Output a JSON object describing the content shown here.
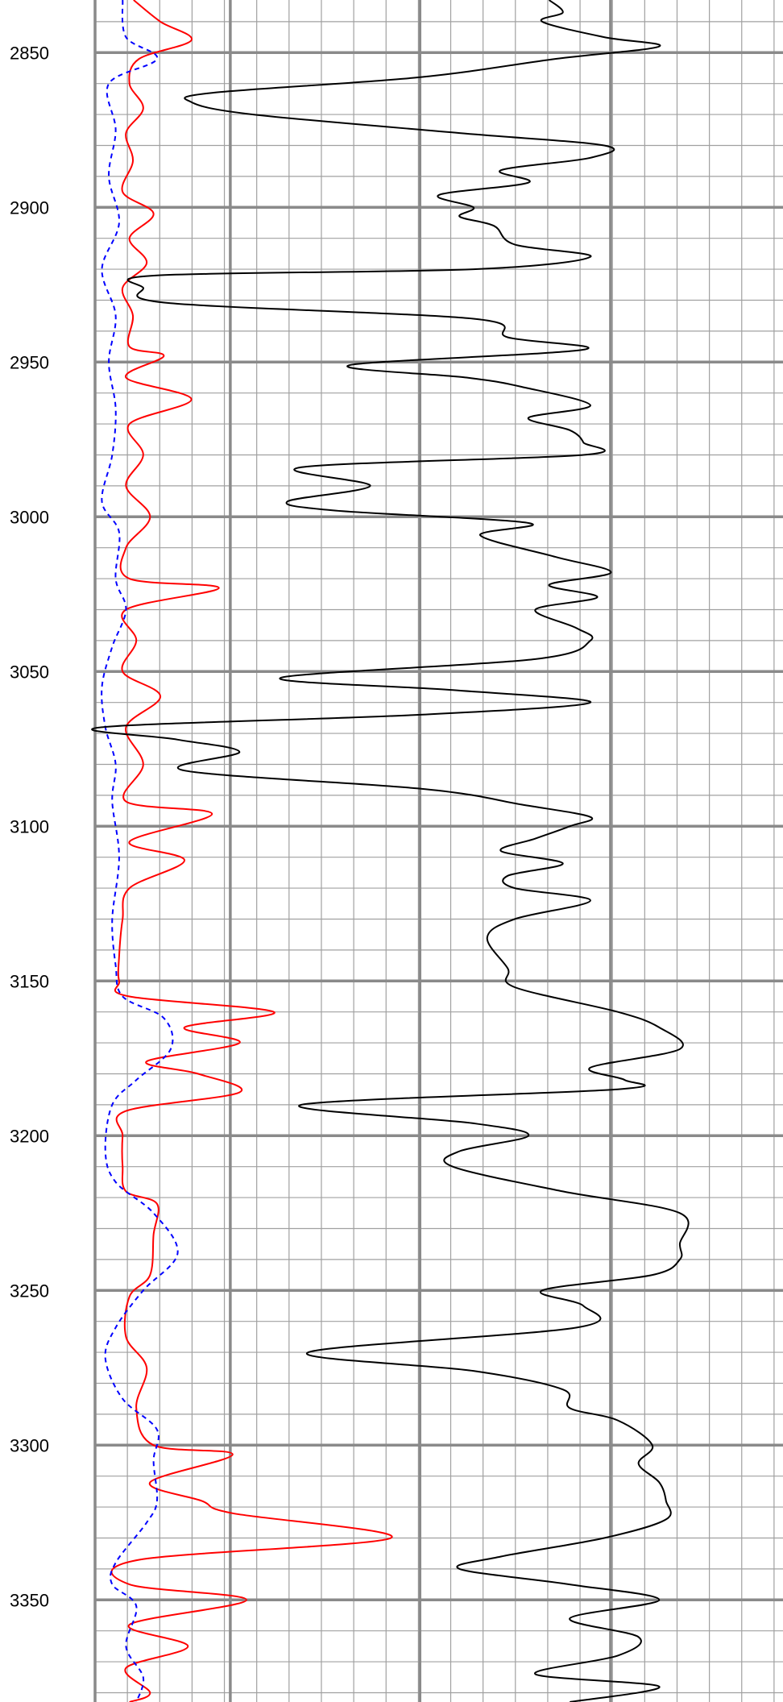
{
  "chart_data": {
    "type": "line",
    "title": "",
    "xlabel": "",
    "ylabel": "",
    "y_axis": {
      "ticks": [
        2850,
        2900,
        2950,
        3000,
        3050,
        3100,
        3150,
        3200,
        3250,
        3300,
        3350
      ],
      "tick_labels": [
        "2850",
        "2900",
        "2950",
        "3000",
        "3050",
        "3100",
        "3150",
        "3200",
        "3250",
        "3300",
        "3350"
      ],
      "range": [
        2833,
        3383
      ],
      "inverted": true,
      "minor_step": 10
    },
    "x_axis": {
      "range": [
        0,
        1
      ],
      "major_lines": [
        0,
        0.1966,
        0.4722,
        0.7493
      ],
      "minor_step": 0.047,
      "labels": "none"
    },
    "grid": true,
    "colors": {
      "grid_major": "#8a8a8a",
      "grid_minor": "#a0a0a0",
      "background": "#ffffff"
    },
    "series": [
      {
        "color": "#ff0000",
        "style": "solid",
        "x_scale": [
          0,
          1
        ],
        "points": [
          [
            2833,
            0.056
          ],
          [
            2840,
            0.095
          ],
          [
            2846,
            0.14
          ],
          [
            2852,
            0.064
          ],
          [
            2860,
            0.05
          ],
          [
            2868,
            0.07
          ],
          [
            2876,
            0.045
          ],
          [
            2885,
            0.055
          ],
          [
            2895,
            0.04
          ],
          [
            2902,
            0.085
          ],
          [
            2910,
            0.05
          ],
          [
            2918,
            0.075
          ],
          [
            2926,
            0.04
          ],
          [
            2935,
            0.055
          ],
          [
            2945,
            0.05
          ],
          [
            2948,
            0.1
          ],
          [
            2955,
            0.045
          ],
          [
            2962,
            0.14
          ],
          [
            2970,
            0.05
          ],
          [
            2980,
            0.07
          ],
          [
            2990,
            0.045
          ],
          [
            3000,
            0.08
          ],
          [
            3010,
            0.045
          ],
          [
            3020,
            0.05
          ],
          [
            3023,
            0.18
          ],
          [
            3030,
            0.045
          ],
          [
            3040,
            0.06
          ],
          [
            3050,
            0.04
          ],
          [
            3058,
            0.095
          ],
          [
            3068,
            0.045
          ],
          [
            3080,
            0.07
          ],
          [
            3092,
            0.045
          ],
          [
            3096,
            0.17
          ],
          [
            3105,
            0.05
          ],
          [
            3111,
            0.13
          ],
          [
            3120,
            0.05
          ],
          [
            3130,
            0.04
          ],
          [
            3142,
            0.035
          ],
          [
            3150,
            0.035
          ],
          [
            3155,
            0.05
          ],
          [
            3160,
            0.26
          ],
          [
            3165,
            0.13
          ],
          [
            3170,
            0.21
          ],
          [
            3176,
            0.075
          ],
          [
            3180,
            0.15
          ],
          [
            3186,
            0.21
          ],
          [
            3192,
            0.045
          ],
          [
            3200,
            0.04
          ],
          [
            3210,
            0.04
          ],
          [
            3218,
            0.045
          ],
          [
            3222,
            0.09
          ],
          [
            3232,
            0.085
          ],
          [
            3245,
            0.08
          ],
          [
            3252,
            0.05
          ],
          [
            3265,
            0.045
          ],
          [
            3275,
            0.075
          ],
          [
            3288,
            0.06
          ],
          [
            3300,
            0.085
          ],
          [
            3303,
            0.2
          ],
          [
            3312,
            0.08
          ],
          [
            3318,
            0.155
          ],
          [
            3322,
            0.2
          ],
          [
            3330,
            0.43
          ],
          [
            3337,
            0.065
          ],
          [
            3345,
            0.05
          ],
          [
            3350,
            0.22
          ],
          [
            3358,
            0.05
          ],
          [
            3365,
            0.135
          ],
          [
            3372,
            0.045
          ],
          [
            3380,
            0.08
          ],
          [
            3383,
            0.05
          ]
        ]
      },
      {
        "color": "#0000ff",
        "style": "dashed",
        "x_scale": [
          0,
          1
        ],
        "points": [
          [
            2833,
            0.04
          ],
          [
            2845,
            0.045
          ],
          [
            2852,
            0.09
          ],
          [
            2860,
            0.02
          ],
          [
            2875,
            0.03
          ],
          [
            2890,
            0.02
          ],
          [
            2905,
            0.035
          ],
          [
            2920,
            0.01
          ],
          [
            2935,
            0.03
          ],
          [
            2950,
            0.02
          ],
          [
            2965,
            0.03
          ],
          [
            2980,
            0.025
          ],
          [
            2995,
            0.01
          ],
          [
            3005,
            0.035
          ],
          [
            3020,
            0.03
          ],
          [
            3030,
            0.045
          ],
          [
            3042,
            0.025
          ],
          [
            3055,
            0.01
          ],
          [
            3068,
            0.015
          ],
          [
            3080,
            0.03
          ],
          [
            3092,
            0.025
          ],
          [
            3110,
            0.035
          ],
          [
            3130,
            0.025
          ],
          [
            3145,
            0.03
          ],
          [
            3155,
            0.04
          ],
          [
            3162,
            0.1
          ],
          [
            3172,
            0.11
          ],
          [
            3182,
            0.06
          ],
          [
            3190,
            0.025
          ],
          [
            3205,
            0.015
          ],
          [
            3215,
            0.03
          ],
          [
            3225,
            0.085
          ],
          [
            3238,
            0.12
          ],
          [
            3250,
            0.07
          ],
          [
            3262,
            0.03
          ],
          [
            3272,
            0.015
          ],
          [
            3285,
            0.04
          ],
          [
            3295,
            0.09
          ],
          [
            3305,
            0.085
          ],
          [
            3318,
            0.09
          ],
          [
            3325,
            0.075
          ],
          [
            3338,
            0.03
          ],
          [
            3345,
            0.025
          ],
          [
            3352,
            0.06
          ],
          [
            3365,
            0.045
          ],
          [
            3375,
            0.07
          ],
          [
            3383,
            0.06
          ]
        ]
      },
      {
        "color": "#000000",
        "style": "solid",
        "x_scale": [
          0,
          1
        ],
        "points": [
          [
            2833,
            0.66
          ],
          [
            2837,
            0.68
          ],
          [
            2840,
            0.65
          ],
          [
            2845,
            0.74
          ],
          [
            2848,
            0.82
          ],
          [
            2852,
            0.67
          ],
          [
            2858,
            0.47
          ],
          [
            2863,
            0.17
          ],
          [
            2866,
            0.14
          ],
          [
            2870,
            0.23
          ],
          [
            2876,
            0.53
          ],
          [
            2880,
            0.74
          ],
          [
            2884,
            0.72
          ],
          [
            2888,
            0.59
          ],
          [
            2892,
            0.63
          ],
          [
            2896,
            0.5
          ],
          [
            2900,
            0.55
          ],
          [
            2903,
            0.53
          ],
          [
            2906,
            0.58
          ],
          [
            2912,
            0.61
          ],
          [
            2916,
            0.72
          ],
          [
            2920,
            0.55
          ],
          [
            2922,
            0.09
          ],
          [
            2926,
            0.07
          ],
          [
            2931,
            0.11
          ],
          [
            2936,
            0.55
          ],
          [
            2942,
            0.6
          ],
          [
            2946,
            0.71
          ],
          [
            2951,
            0.37
          ],
          [
            2955,
            0.54
          ],
          [
            2958,
            0.62
          ],
          [
            2964,
            0.72
          ],
          [
            2968,
            0.63
          ],
          [
            2972,
            0.69
          ],
          [
            2976,
            0.71
          ],
          [
            2980,
            0.71
          ],
          [
            2984,
            0.3
          ],
          [
            2990,
            0.4
          ],
          [
            2995,
            0.28
          ],
          [
            2998,
            0.35
          ],
          [
            3002,
            0.63
          ],
          [
            3006,
            0.56
          ],
          [
            3013,
            0.67
          ],
          [
            3018,
            0.75
          ],
          [
            3022,
            0.66
          ],
          [
            3026,
            0.73
          ],
          [
            3030,
            0.64
          ],
          [
            3036,
            0.7
          ],
          [
            3040,
            0.72
          ],
          [
            3046,
            0.64
          ],
          [
            3052,
            0.27
          ],
          [
            3056,
            0.52
          ],
          [
            3060,
            0.72
          ],
          [
            3064,
            0.47
          ],
          [
            3068,
            0.01
          ],
          [
            3072,
            0.12
          ],
          [
            3076,
            0.21
          ],
          [
            3082,
            0.13
          ],
          [
            3088,
            0.48
          ],
          [
            3093,
            0.62
          ],
          [
            3097,
            0.72
          ],
          [
            3100,
            0.69
          ],
          [
            3104,
            0.64
          ],
          [
            3108,
            0.59
          ],
          [
            3112,
            0.68
          ],
          [
            3116,
            0.6
          ],
          [
            3120,
            0.61
          ],
          [
            3124,
            0.72
          ],
          [
            3130,
            0.61
          ],
          [
            3136,
            0.57
          ],
          [
            3146,
            0.6
          ],
          [
            3152,
            0.61
          ],
          [
            3160,
            0.76
          ],
          [
            3165,
            0.82
          ],
          [
            3172,
            0.85
          ],
          [
            3178,
            0.72
          ],
          [
            3182,
            0.77
          ],
          [
            3185,
            0.76
          ],
          [
            3190,
            0.3
          ],
          [
            3196,
            0.55
          ],
          [
            3200,
            0.63
          ],
          [
            3205,
            0.53
          ],
          [
            3210,
            0.52
          ],
          [
            3218,
            0.68
          ],
          [
            3225,
            0.85
          ],
          [
            3235,
            0.85
          ],
          [
            3240,
            0.85
          ],
          [
            3245,
            0.81
          ],
          [
            3250,
            0.65
          ],
          [
            3255,
            0.71
          ],
          [
            3262,
            0.7
          ],
          [
            3270,
            0.31
          ],
          [
            3276,
            0.55
          ],
          [
            3282,
            0.68
          ],
          [
            3288,
            0.69
          ],
          [
            3292,
            0.76
          ],
          [
            3300,
            0.81
          ],
          [
            3306,
            0.79
          ],
          [
            3312,
            0.82
          ],
          [
            3318,
            0.83
          ],
          [
            3324,
            0.83
          ],
          [
            3330,
            0.74
          ],
          [
            3336,
            0.59
          ],
          [
            3340,
            0.53
          ],
          [
            3345,
            0.69
          ],
          [
            3350,
            0.82
          ],
          [
            3356,
            0.69
          ],
          [
            3362,
            0.79
          ],
          [
            3368,
            0.76
          ],
          [
            3374,
            0.64
          ],
          [
            3378,
            0.82
          ],
          [
            3383,
            0.69
          ]
        ]
      }
    ]
  }
}
